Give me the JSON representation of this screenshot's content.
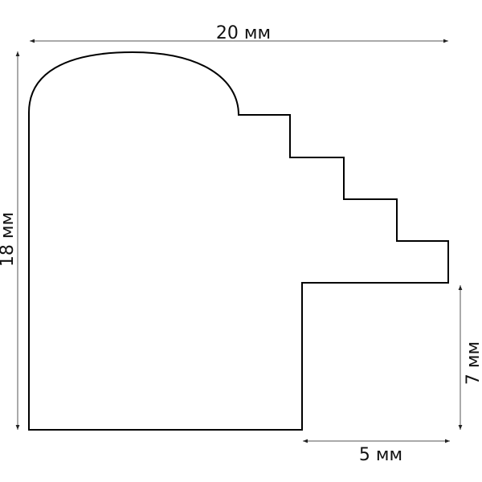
{
  "dimensions": {
    "width_label": "20 мм",
    "height_label": "18 мм",
    "lip_height_label": "7 мм",
    "lip_width_label": "5 мм"
  },
  "colors": {
    "outline": "#000000",
    "dimension_line": "#555555"
  }
}
